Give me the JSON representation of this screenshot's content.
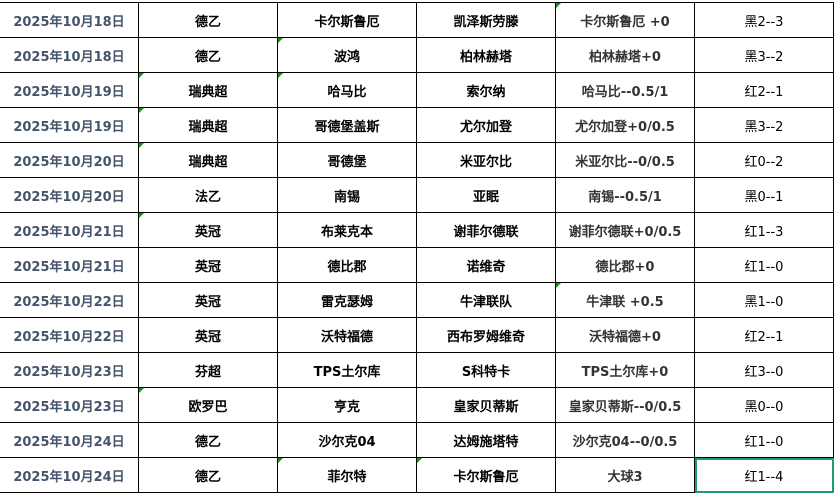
{
  "rows": [
    {
      "date": "2025年10月18日",
      "league": "德乙",
      "home": "卡尔斯鲁厄",
      "away": "凯泽斯劳滕",
      "handicap": "卡尔斯鲁厄 +0",
      "result": "黑2--3",
      "marks": [
        4
      ]
    },
    {
      "date": "2025年10月18日",
      "league": "德乙",
      "home": "波鸿",
      "away": "柏林赫塔",
      "handicap": "柏林赫塔+0",
      "result": "黑3--2",
      "marks": [
        2
      ]
    },
    {
      "date": "2025年10月19日",
      "league": "瑞典超",
      "home": "哈马比",
      "away": "索尔纳",
      "handicap": "哈马比--0.5/1",
      "result": "红2--1",
      "marks": [
        1,
        2
      ]
    },
    {
      "date": "2025年10月19日",
      "league": "瑞典超",
      "home": "哥德堡盖斯",
      "away": "尤尔加登",
      "handicap": "尤尔加登+0/0.5",
      "result": "黑3--2",
      "marks": [
        1
      ]
    },
    {
      "date": "2025年10月20日",
      "league": "瑞典超",
      "home": "哥德堡",
      "away": "米亚尔比",
      "handicap": "米亚尔比--0/0.5",
      "result": "红0--2",
      "marks": [
        1
      ]
    },
    {
      "date": "2025年10月20日",
      "league": "法乙",
      "home": "南锡",
      "away": "亚眠",
      "handicap": "南锡--0.5/1",
      "result": "黑0--1",
      "marks": []
    },
    {
      "date": "2025年10月21日",
      "league": "英冠",
      "home": "布莱克本",
      "away": "谢菲尔德联",
      "handicap": "谢菲尔德联+0/0.5",
      "result": "红1--3",
      "marks": [
        1
      ]
    },
    {
      "date": "2025年10月21日",
      "league": "英冠",
      "home": "德比郡",
      "away": "诺维奇",
      "handicap": "德比郡+0",
      "result": "红1--0",
      "marks": []
    },
    {
      "date": "2025年10月22日",
      "league": "英冠",
      "home": "雷克瑟姆",
      "away": "牛津联队",
      "handicap": "牛津联  +0.5",
      "result": "黑1--0",
      "marks": [
        4
      ]
    },
    {
      "date": "2025年10月22日",
      "league": "英冠",
      "home": "沃特福德",
      "away": "西布罗姆维奇",
      "handicap": "沃特福德+0",
      "result": "红2--1",
      "marks": []
    },
    {
      "date": "2025年10月23日",
      "league": "芬超",
      "home": "TPS土尔库",
      "away": "S科特卡",
      "handicap": "TPS土尔库+0",
      "result": "红3--0",
      "marks": []
    },
    {
      "date": "2025年10月23日",
      "league": "欧罗巴",
      "home": "亨克",
      "away": "皇家贝蒂斯",
      "handicap": "皇家贝蒂斯--0/0.5",
      "result": "黑0--0",
      "marks": [
        1
      ]
    },
    {
      "date": "2025年10月24日",
      "league": "德乙",
      "home": "沙尔克04",
      "away": "达姆施塔特",
      "handicap": "沙尔克04--0/0.5",
      "result": "红1--0",
      "marks": []
    },
    {
      "date": "2025年10月24日",
      "league": "德乙",
      "home": "菲尔特",
      "away": "卡尔斯鲁厄",
      "handicap": "大球3",
      "result": "红1--4",
      "marks": [
        2,
        3
      ]
    }
  ],
  "selected_cell": {
    "row": 13,
    "col": 5
  },
  "colors": {
    "date_text": "#44546a",
    "comment_marker": "#1a8a1a",
    "selection_border": "#1e9e6a"
  }
}
